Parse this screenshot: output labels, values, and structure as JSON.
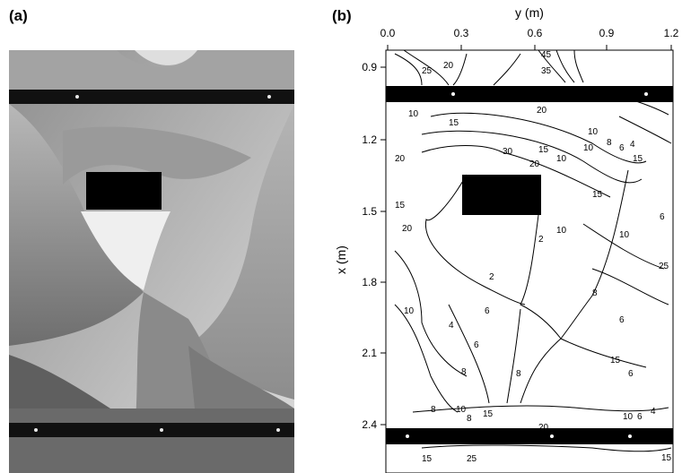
{
  "panels": {
    "a": {
      "label": "(a)"
    },
    "b": {
      "label": "(b)"
    }
  },
  "axes": {
    "y_title": "y (m)",
    "x_title": "x (m)",
    "y_ticks": [
      "0.0",
      "0.3",
      "0.6",
      "0.9",
      "1.2"
    ],
    "x_ticks": [
      "0.9",
      "1.2",
      "1.5",
      "1.8",
      "2.1",
      "2.4"
    ]
  },
  "contour_labels": [
    "45",
    "35",
    "25",
    "20",
    "20",
    "15",
    "10",
    "10",
    "8",
    "6",
    "4",
    "2",
    "15",
    "10",
    "20",
    "20",
    "15",
    "10",
    "8",
    "6",
    "4",
    "8",
    "6",
    "10",
    "6",
    "2",
    "15",
    "25",
    "10",
    "8",
    "15",
    "6",
    "8",
    "10",
    "15",
    "20",
    "6",
    "15",
    "25",
    "30",
    "15",
    "10",
    "6",
    "4",
    "15",
    "10",
    "6",
    "8",
    "20"
  ]
}
